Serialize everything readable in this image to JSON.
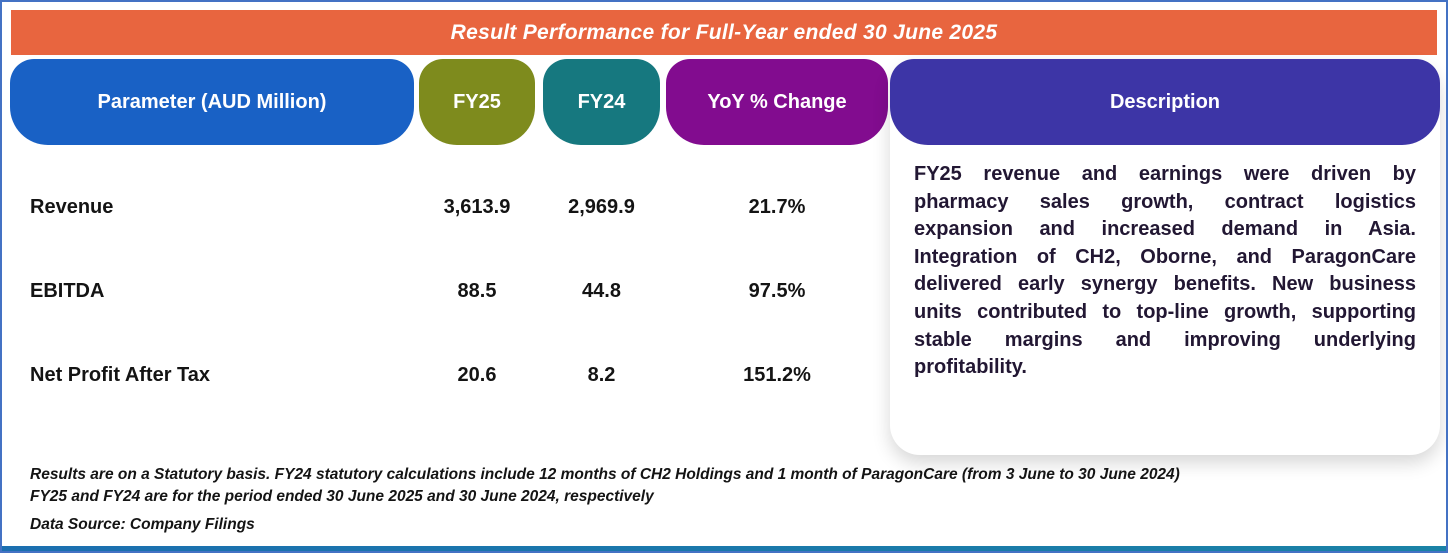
{
  "title": "Result Performance for Full-Year ended 30 June 2025",
  "columns": {
    "parameter": "Parameter (AUD Million)",
    "fy25": "FY25",
    "fy24": "FY24",
    "yoy": "YoY % Change",
    "description": "Description"
  },
  "rows": [
    {
      "parameter": "Revenue",
      "fy25": "3,613.9",
      "fy24": "2,969.9",
      "yoy": "21.7%"
    },
    {
      "parameter": "EBITDA",
      "fy25": "88.5",
      "fy24": "44.8",
      "yoy": "97.5%"
    },
    {
      "parameter": "Net Profit After Tax",
      "fy25": "20.6",
      "fy24": "8.2",
      "yoy": "151.2%"
    }
  ],
  "description": "FY25 revenue and earnings were driven by pharmacy sales growth, contract logistics expansion and increased demand in Asia. Integration of CH2, Oborne, and ParagonCare delivered early synergy benefits. New business units contributed to top-line growth, supporting stable margins and improving underlying profitability.",
  "footnotes": [
    "Results are on a Statutory basis. FY24 statutory calculations include 12 months of CH2 Holdings and 1 month of ParagonCare (from 3 June to 30 June 2024)",
    "FY25 and FY24 are for the period ended 30 June 2025 and 30 June 2024, respectively"
  ],
  "data_source": "Data Source: Company Filings",
  "colors": {
    "title_bar": "#E8653F",
    "parameter_header": "#1961C5",
    "fy25_header": "#7E8B1D",
    "fy24_header": "#16787F",
    "yoy_header": "#820C8F",
    "description_header": "#3D35A6",
    "border": "#4472C4",
    "bottom_accent": "#1A82A6"
  },
  "chart_data": {
    "type": "table",
    "title": "Result Performance for Full-Year ended 30 June 2025",
    "columns": [
      "Parameter (AUD Million)",
      "FY25",
      "FY24",
      "YoY % Change"
    ],
    "rows": [
      [
        "Revenue",
        3613.9,
        2969.9,
        "21.7%"
      ],
      [
        "EBITDA",
        88.5,
        44.8,
        "97.5%"
      ],
      [
        "Net Profit After Tax",
        20.6,
        8.2,
        "151.2%"
      ]
    ],
    "notes": "Values in AUD Million; statutory basis"
  }
}
